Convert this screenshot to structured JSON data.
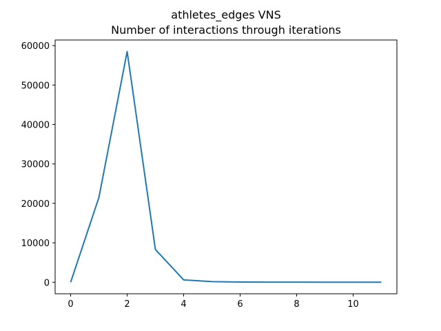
{
  "chart_data": {
    "type": "line",
    "title": "athletes_edges VNS",
    "subtitle": "Number of interactions through iterations",
    "xlabel": "",
    "ylabel": "",
    "x": [
      0,
      1,
      2,
      3,
      4,
      5,
      6,
      7,
      8,
      9,
      10,
      11
    ],
    "series": [
      {
        "values": [
          0,
          21500,
          58500,
          8300,
          600,
          150,
          50,
          30,
          20,
          10,
          10,
          10
        ],
        "color": "#1f77b4"
      }
    ],
    "xlim": [
      -0.55,
      11.55
    ],
    "ylim": [
      -2925,
      61425
    ],
    "xticks": [
      0,
      2,
      4,
      6,
      8,
      10
    ],
    "yticks": [
      0,
      10000,
      20000,
      30000,
      40000,
      50000,
      60000
    ],
    "grid": false,
    "legend": "none"
  }
}
